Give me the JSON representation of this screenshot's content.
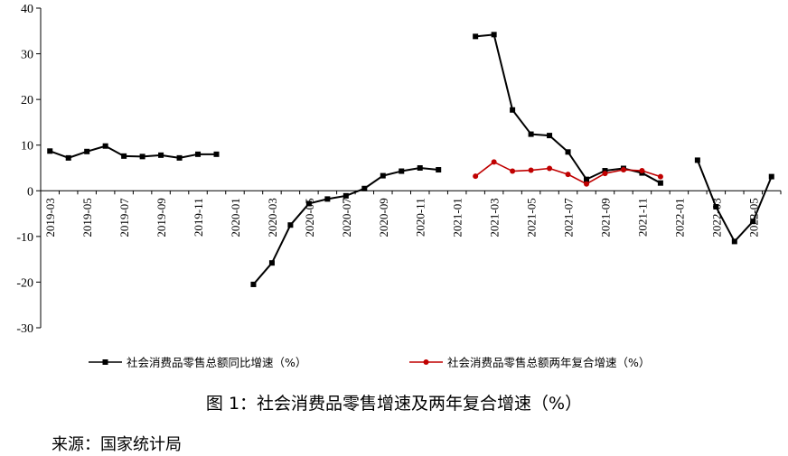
{
  "chart_data": {
    "type": "line",
    "categories": [
      "2019-03",
      "2019-04",
      "2019-05",
      "2019-06",
      "2019-07",
      "2019-08",
      "2019-09",
      "2019-10",
      "2019-11",
      "2019-12",
      "2020-01",
      "2020-02",
      "2020-03",
      "2020-04",
      "2020-05",
      "2020-06",
      "2020-07",
      "2020-08",
      "2020-09",
      "2020-10",
      "2020-11",
      "2020-12",
      "2021-01",
      "2021-02",
      "2021-03",
      "2021-04",
      "2021-05",
      "2021-06",
      "2021-07",
      "2021-08",
      "2021-09",
      "2021-10",
      "2021-11",
      "2021-12",
      "2022-01",
      "2022-02",
      "2022-03",
      "2022-04",
      "2022-05",
      "2022-06"
    ],
    "x_tick_labels": [
      "2019-03",
      "2019-05",
      "2019-07",
      "2019-09",
      "2019-11",
      "2020-01",
      "2020-03",
      "2020-05",
      "2020-07",
      "2020-09",
      "2020-11",
      "2021-01",
      "2021-03",
      "2021-05",
      "2021-07",
      "2021-09",
      "2021-11",
      "2022-01",
      "2022-03",
      "2022-05"
    ],
    "series": [
      {
        "name": "社会消费品零售总额同比增速（%）",
        "color": "#000000",
        "marker": "square",
        "values": [
          8.7,
          7.2,
          8.6,
          9.8,
          7.6,
          7.5,
          7.8,
          7.2,
          8.0,
          8.0,
          null,
          -20.5,
          -15.8,
          -7.5,
          -2.8,
          -1.8,
          -1.1,
          0.5,
          3.3,
          4.3,
          5.0,
          4.6,
          null,
          33.8,
          34.2,
          17.7,
          12.4,
          12.1,
          8.5,
          2.5,
          4.4,
          4.9,
          3.9,
          1.7,
          null,
          6.7,
          -3.5,
          -11.1,
          -6.7,
          3.1
        ]
      },
      {
        "name": "社会消费品零售总额两年复合增速（%）",
        "color": "#c00000",
        "marker": "circle",
        "values": [
          null,
          null,
          null,
          null,
          null,
          null,
          null,
          null,
          null,
          null,
          null,
          null,
          null,
          null,
          null,
          null,
          null,
          null,
          null,
          null,
          null,
          null,
          null,
          3.2,
          6.3,
          4.3,
          4.5,
          4.9,
          3.6,
          1.5,
          3.8,
          4.6,
          4.4,
          3.1,
          null,
          null,
          null,
          null,
          null,
          null
        ]
      }
    ],
    "ylim": [
      -30,
      40
    ],
    "y_ticks": [
      -30,
      -20,
      -10,
      0,
      10,
      20,
      30,
      40
    ],
    "grid": false,
    "legend_position": "bottom"
  },
  "caption": "图 1：社会消费品零售增速及两年复合增速（%）",
  "source": "来源：国家统计局"
}
